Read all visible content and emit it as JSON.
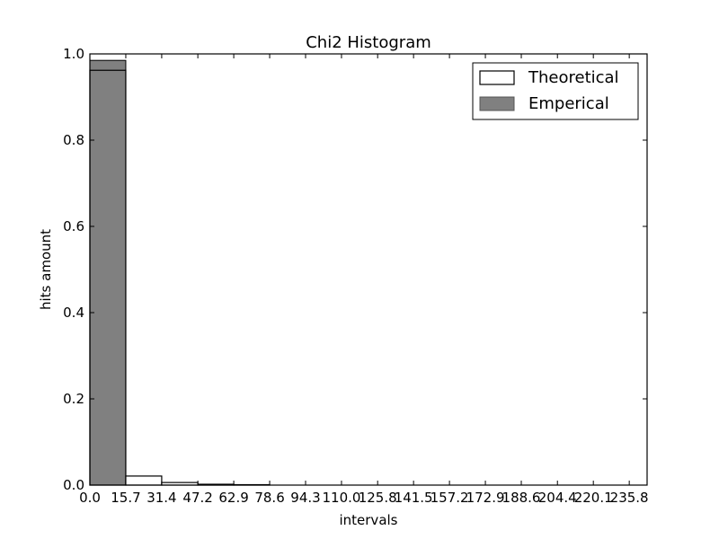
{
  "chart_data": {
    "type": "bar",
    "title": "Chi2 Histogram",
    "xlabel": "intervals",
    "ylabel": "hits amount",
    "xlim": [
      0.0,
      243.6
    ],
    "ylim": [
      0.0,
      1.0
    ],
    "x_ticks": [
      "0.0",
      "15.7",
      "31.4",
      "47.2",
      "62.9",
      "78.6",
      "94.3",
      "110.0",
      "125.8",
      "141.5",
      "157.2",
      "172.9",
      "188.6",
      "204.4",
      "220.1",
      "235.8"
    ],
    "y_ticks": [
      "0.0",
      "0.2",
      "0.4",
      "0.6",
      "0.8",
      "1.0"
    ],
    "bin_edges": [
      0.0,
      15.7,
      31.4,
      47.2,
      62.9,
      78.6,
      94.3,
      110.0,
      125.8,
      141.5,
      157.2,
      172.9,
      188.6,
      204.4,
      220.1,
      235.8,
      243.6
    ],
    "series": [
      {
        "name": "Theoretical",
        "style": "outline",
        "values": [
          0.962,
          0.021,
          0.006,
          0.002,
          0.001,
          0,
          0,
          0,
          0,
          0,
          0,
          0,
          0,
          0,
          0,
          0
        ]
      },
      {
        "name": "Emperical",
        "style": "filled",
        "values": [
          0.985,
          0.011,
          0.003,
          0.001,
          0,
          0,
          0,
          0,
          0,
          0,
          0,
          0,
          0,
          0,
          0,
          0
        ]
      }
    ],
    "legend_position": "top-right",
    "grid": false,
    "colors": {
      "emperical_fill": "#808080",
      "theoretical_edge": "#000000",
      "theoretical_fill": "#ffffff",
      "axis": "#000000"
    }
  }
}
